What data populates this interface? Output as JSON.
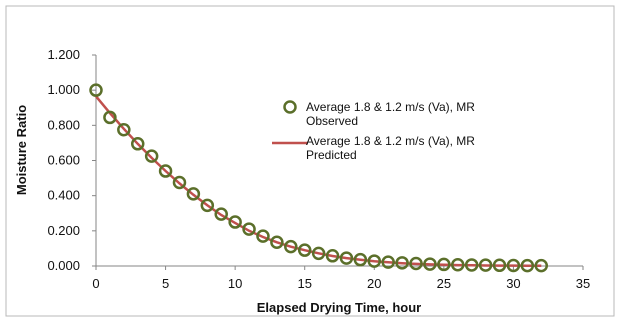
{
  "chart_data": {
    "type": "scatter",
    "title": "",
    "xlabel": "Elapsed Drying Time, hour",
    "ylabel": "Moisture Ratio",
    "xlim": [
      0,
      35
    ],
    "ylim": [
      0,
      1.2
    ],
    "x_ticks": [
      "0",
      "5",
      "10",
      "15",
      "20",
      "25",
      "30",
      "35"
    ],
    "y_ticks": [
      "0.000",
      "0.200",
      "0.400",
      "0.600",
      "0.800",
      "1.000",
      "1.200"
    ],
    "grid": false,
    "legend_position": "right",
    "series": [
      {
        "name": "Average 1.8 & 1.2 m/s (Va), MR Observed",
        "name_lines": [
          "Average 1.8 & 1.2 m/s (Va), MR",
          "Observed"
        ],
        "marker": "circle-open",
        "color": "#5b6f2a",
        "x": [
          0,
          1,
          2,
          3,
          4,
          5,
          6,
          7,
          8,
          9,
          10,
          11,
          12,
          13,
          14,
          15,
          16,
          17,
          18,
          19,
          20,
          21,
          22,
          23,
          24,
          25,
          26,
          27,
          28,
          29,
          30,
          31,
          32
        ],
        "y": [
          1.0,
          0.845,
          0.775,
          0.695,
          0.625,
          0.54,
          0.475,
          0.41,
          0.345,
          0.295,
          0.25,
          0.21,
          0.17,
          0.135,
          0.11,
          0.09,
          0.072,
          0.058,
          0.045,
          0.036,
          0.028,
          0.022,
          0.018,
          0.014,
          0.011,
          0.009,
          0.007,
          0.006,
          0.005,
          0.004,
          0.003,
          0.002,
          0.002
        ]
      },
      {
        "name": "Average 1.8 & 1.2 m/s (Va), MR Predicted",
        "name_lines": [
          "Average 1.8 & 1.2 m/s (Va), MR",
          "Predicted"
        ],
        "marker": "line",
        "color": "#c0504d",
        "x": [
          0,
          1,
          2,
          3,
          4,
          5,
          6,
          7,
          8,
          9,
          10,
          11,
          12,
          13,
          14,
          15,
          16,
          17,
          18,
          19,
          20,
          21,
          22,
          23,
          24,
          25,
          26,
          27,
          28,
          29,
          30,
          31,
          32
        ],
        "y": [
          0.965,
          0.87,
          0.78,
          0.695,
          0.615,
          0.54,
          0.47,
          0.405,
          0.345,
          0.29,
          0.245,
          0.2,
          0.165,
          0.135,
          0.11,
          0.09,
          0.072,
          0.057,
          0.045,
          0.035,
          0.027,
          0.021,
          0.016,
          0.012,
          0.009,
          0.007,
          0.005,
          0.004,
          0.003,
          0.002,
          0.002,
          0.001,
          0.001
        ]
      }
    ]
  }
}
